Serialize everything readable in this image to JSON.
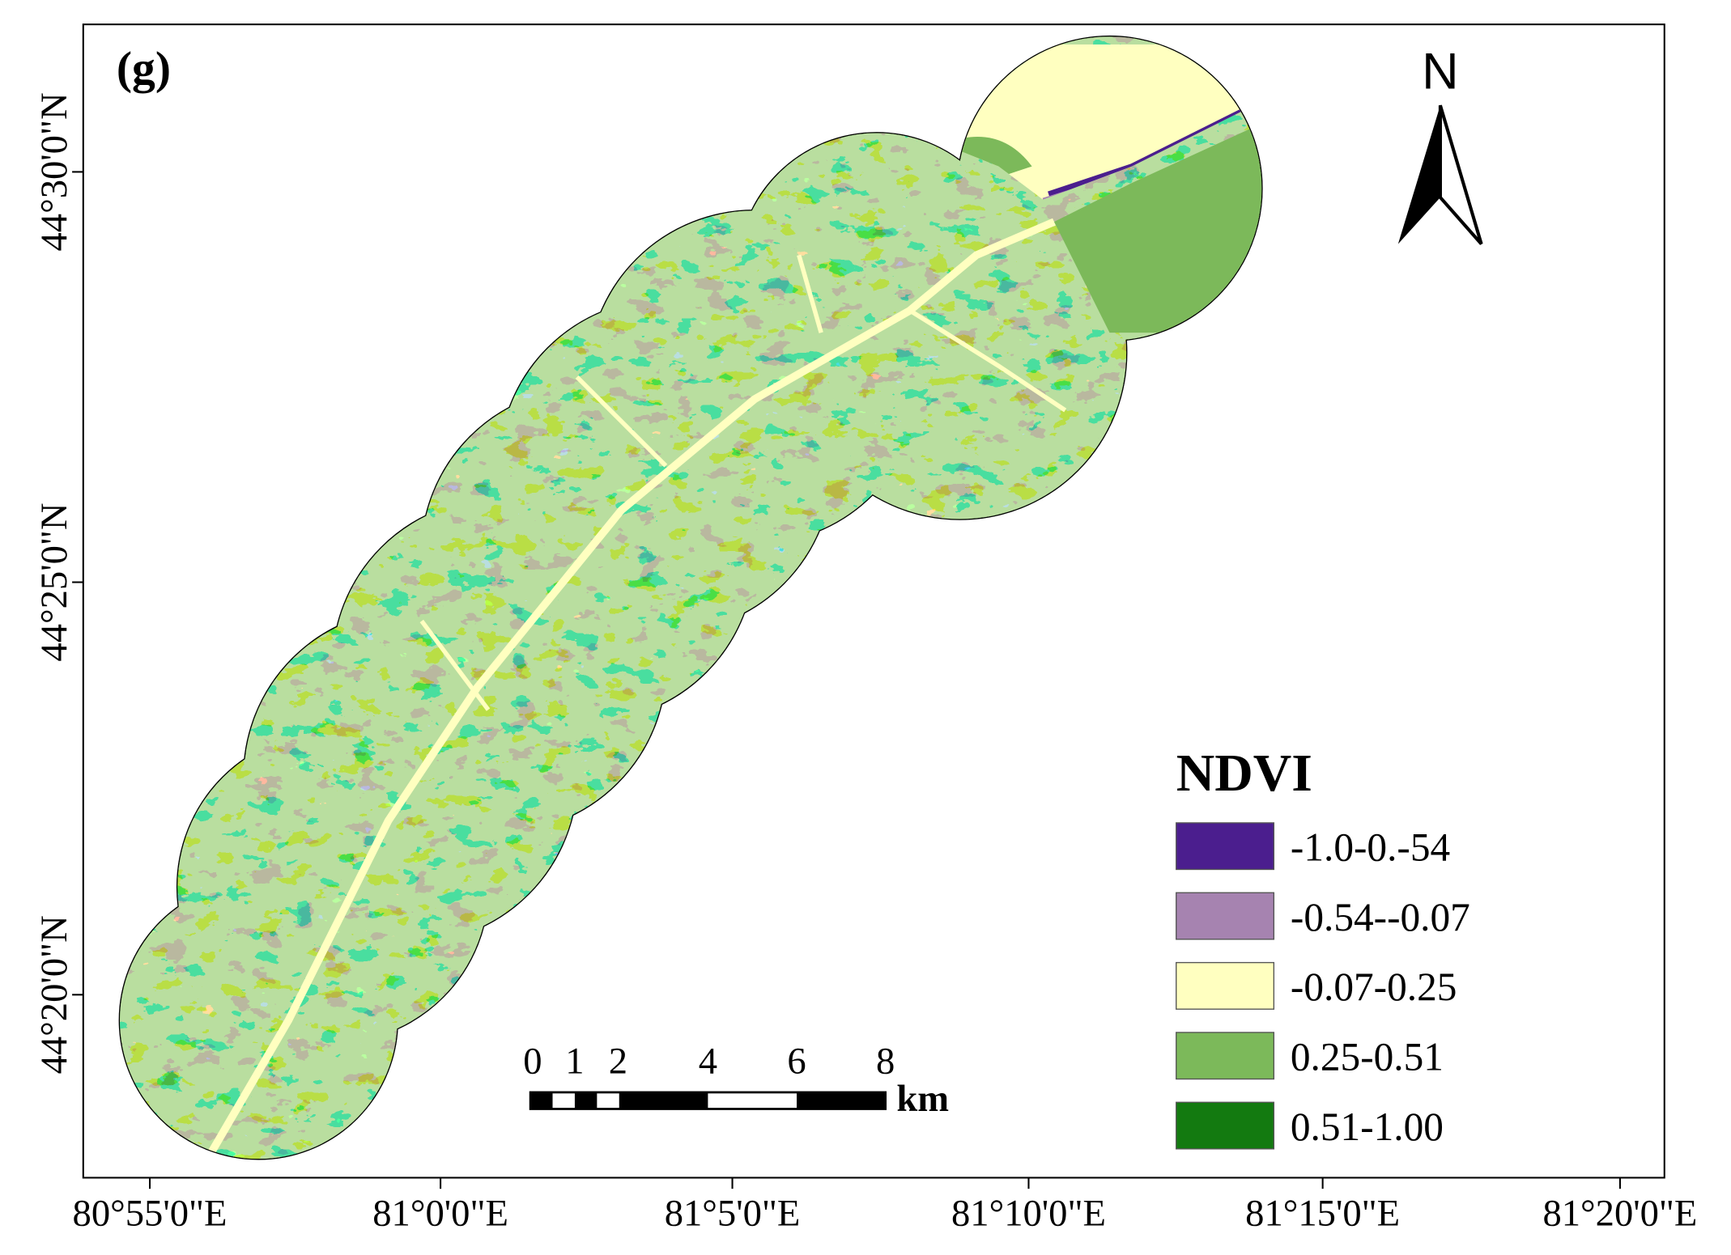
{
  "panel_label": "(g)",
  "north_arrow": "N",
  "x_axis": {
    "ticks": [
      "80°55'0\"E",
      "81°0'0\"E",
      "81°5'0\"E",
      "81°10'0\"E",
      "81°15'0\"E",
      "81°20'0\"E"
    ]
  },
  "y_axis": {
    "ticks": [
      "44°30'0\"N",
      "44°25'0\"N",
      "44°20'0\"N"
    ]
  },
  "legend": {
    "title": "NDVI",
    "items": [
      {
        "label": "-1.0-0.-54",
        "color": "#4b1e8e"
      },
      {
        "label": "-0.54--0.07",
        "color": "#a683b0"
      },
      {
        "label": "-0.07-0.25",
        "color": "#ffffc0"
      },
      {
        "label": "0.25-0.51",
        "color": "#7cb95a"
      },
      {
        "label": "0.51-1.00",
        "color": "#137a10"
      }
    ]
  },
  "scale_bar": {
    "labels": [
      "0",
      "1",
      "2",
      "4",
      "6",
      "8"
    ],
    "unit": "km"
  }
}
